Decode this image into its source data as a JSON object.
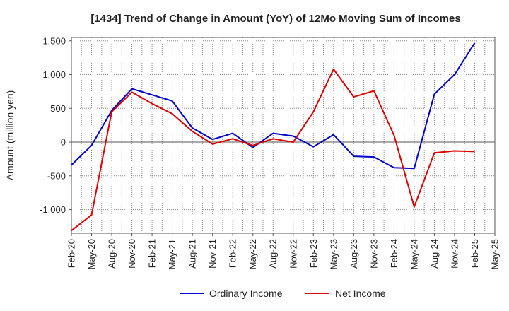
{
  "chart_data": {
    "type": "line",
    "title": "[1434]  Trend of Change in Amount (YoY) of 12Mo Moving Sum of Incomes",
    "xlabel": "",
    "ylabel": "Amount (million yen)",
    "ylim": [
      -1350,
      1550
    ],
    "yticks": [
      1500,
      1000,
      500,
      0,
      -500,
      -1000
    ],
    "ytick_labels": [
      "1,500",
      "1,000",
      "500",
      "0",
      "-500",
      "-1,000"
    ],
    "x": [
      "Feb-20",
      "May-20",
      "Aug-20",
      "Nov-20",
      "Feb-21",
      "May-21",
      "Aug-21",
      "Nov-21",
      "Feb-22",
      "May-22",
      "Aug-22",
      "Nov-22",
      "Feb-23",
      "May-23",
      "Aug-23",
      "Nov-23",
      "Feb-24",
      "May-24",
      "Aug-24",
      "Nov-24",
      "Feb-25",
      "May-25"
    ],
    "grid": true,
    "legend_position": "bottom",
    "series": [
      {
        "name": "Ordinary Income",
        "color": "#0000cc",
        "values": [
          -340,
          -50,
          470,
          790,
          700,
          610,
          210,
          40,
          130,
          -80,
          130,
          90,
          -70,
          110,
          -210,
          -220,
          -380,
          -390,
          710,
          1000,
          1470,
          null
        ]
      },
      {
        "name": "Net Income",
        "color": "#dd0000",
        "values": [
          -1310,
          -1080,
          450,
          740,
          570,
          420,
          160,
          -30,
          50,
          -50,
          50,
          0,
          450,
          1080,
          670,
          760,
          100,
          -960,
          -160,
          -130,
          -140,
          null
        ]
      }
    ]
  }
}
